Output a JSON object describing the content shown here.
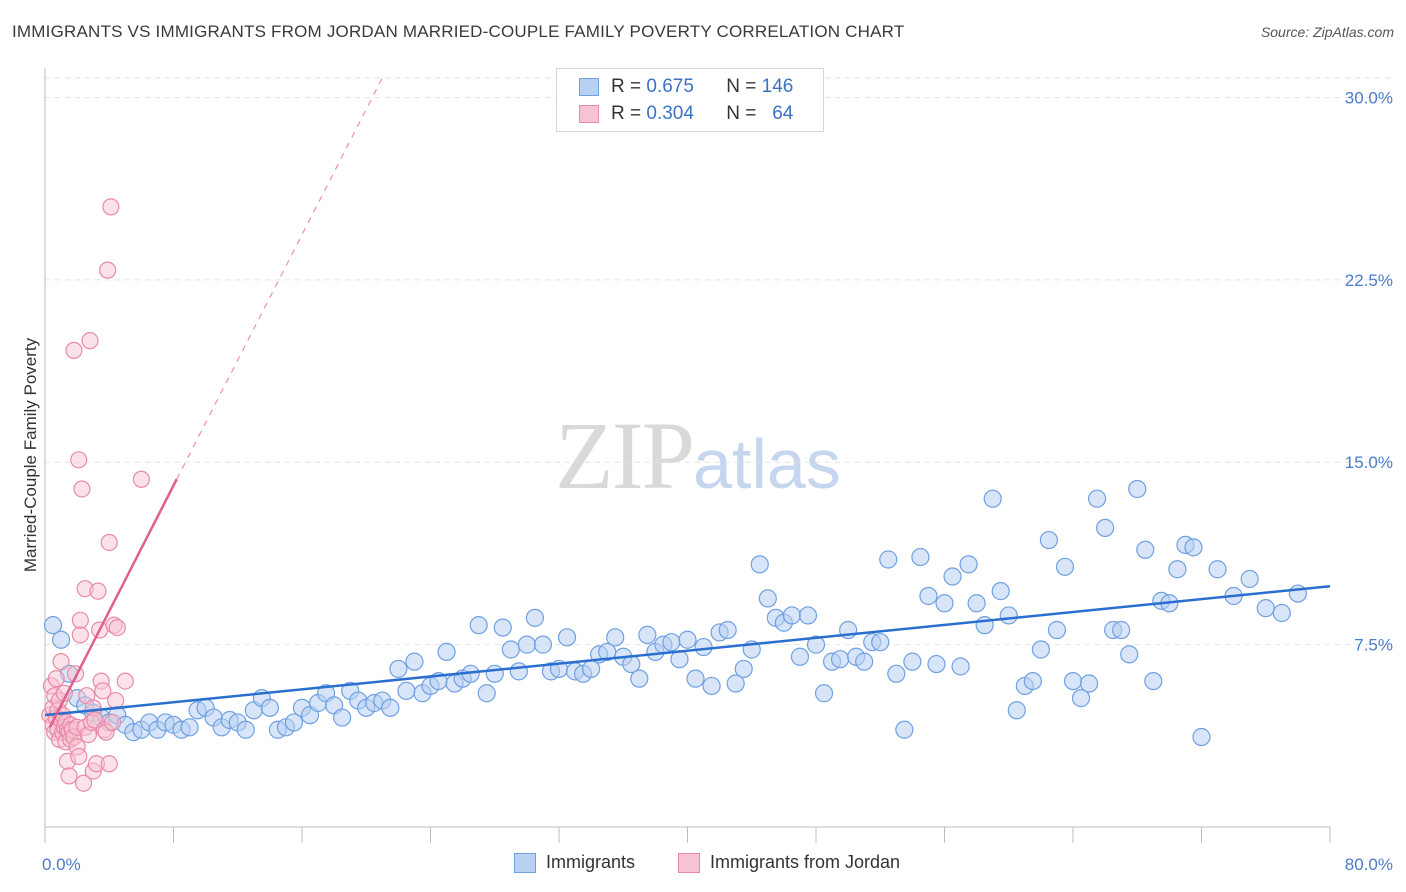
{
  "title": "IMMIGRANTS VS IMMIGRANTS FROM JORDAN MARRIED-COUPLE FAMILY POVERTY CORRELATION CHART",
  "source": "Source: ZipAtlas.com",
  "watermark": {
    "zip": "ZIP",
    "atlas": "atlas"
  },
  "legend": {
    "r_label": "R =",
    "n_label": "N =",
    "rows": [
      {
        "r": "0.675",
        "n": "146"
      },
      {
        "r": "0.304",
        "n": "64"
      }
    ]
  },
  "bottom_legend": {
    "series1": "Immigrants",
    "series2": "Immigrants from Jordan"
  },
  "colors": {
    "blue": "#6fa0e0",
    "blue_fill": "#b8d0f2",
    "blue_line": "#2a6fcf",
    "pink": "#e88aa8",
    "pink_fill": "#f7c3d2",
    "pink_line": "#e0608a",
    "axis_text": "#4a7cc7"
  },
  "chart_data": {
    "type": "scatter",
    "title": "IMMIGRANTS VS IMMIGRANTS FROM JORDAN MARRIED-COUPLE FAMILY POVERTY CORRELATION CHART",
    "xlabel": "",
    "ylabel": "Married-Couple Family Poverty",
    "xlim": [
      0,
      80
    ],
    "ylim": [
      0,
      30.8
    ],
    "x_tick_labels": [
      "0.0%",
      "80.0%"
    ],
    "y_tick_values": [
      7.5,
      15.0,
      22.5,
      30.0
    ],
    "y_tick_labels": [
      "7.5%",
      "15.0%",
      "22.5%",
      "30.0%"
    ],
    "grid": true,
    "legend_position": "top-center",
    "series": [
      {
        "name": "Immigrants",
        "r": 0.675,
        "n": 146,
        "trend": {
          "x0": 0,
          "y0": 4.6,
          "x1": 80,
          "y1": 9.9
        },
        "points": [
          [
            0.5,
            8.3
          ],
          [
            1,
            7.7
          ],
          [
            1.5,
            6.3
          ],
          [
            2,
            5.3
          ],
          [
            2.5,
            5.0
          ],
          [
            3,
            4.7
          ],
          [
            3.5,
            4.5
          ],
          [
            4,
            4.3
          ],
          [
            4.5,
            4.6
          ],
          [
            5,
            4.2
          ],
          [
            5.5,
            3.9
          ],
          [
            6,
            4.0
          ],
          [
            6.5,
            4.3
          ],
          [
            7,
            4.0
          ],
          [
            7.5,
            4.3
          ],
          [
            8,
            4.2
          ],
          [
            8.5,
            4.0
          ],
          [
            9,
            4.1
          ],
          [
            9.5,
            4.8
          ],
          [
            10,
            4.9
          ],
          [
            10.5,
            4.5
          ],
          [
            11,
            4.1
          ],
          [
            11.5,
            4.4
          ],
          [
            12,
            4.3
          ],
          [
            12.5,
            4.0
          ],
          [
            13,
            4.8
          ],
          [
            13.5,
            5.3
          ],
          [
            14,
            4.9
          ],
          [
            14.5,
            4.0
          ],
          [
            15,
            4.1
          ],
          [
            15.5,
            4.3
          ],
          [
            16,
            4.9
          ],
          [
            16.5,
            4.6
          ],
          [
            17,
            5.1
          ],
          [
            17.5,
            5.5
          ],
          [
            18,
            5.0
          ],
          [
            18.5,
            4.5
          ],
          [
            19,
            5.6
          ],
          [
            19.5,
            5.2
          ],
          [
            20,
            4.9
          ],
          [
            20.5,
            5.1
          ],
          [
            21,
            5.2
          ],
          [
            21.5,
            4.9
          ],
          [
            22,
            6.5
          ],
          [
            22.5,
            5.6
          ],
          [
            23,
            6.8
          ],
          [
            23.5,
            5.5
          ],
          [
            24,
            5.8
          ],
          [
            24.5,
            6.0
          ],
          [
            25,
            7.2
          ],
          [
            25.5,
            5.9
          ],
          [
            26,
            6.1
          ],
          [
            26.5,
            6.3
          ],
          [
            27,
            8.3
          ],
          [
            27.5,
            5.5
          ],
          [
            28,
            6.3
          ],
          [
            28.5,
            8.2
          ],
          [
            29,
            7.3
          ],
          [
            29.5,
            6.4
          ],
          [
            30,
            7.5
          ],
          [
            30.5,
            8.6
          ],
          [
            31,
            7.5
          ],
          [
            31.5,
            6.4
          ],
          [
            32,
            6.5
          ],
          [
            32.5,
            7.8
          ],
          [
            33,
            6.4
          ],
          [
            33.5,
            6.3
          ],
          [
            34,
            6.5
          ],
          [
            34.5,
            7.1
          ],
          [
            35,
            7.2
          ],
          [
            35.5,
            7.8
          ],
          [
            36,
            7.0
          ],
          [
            36.5,
            6.7
          ],
          [
            37,
            6.1
          ],
          [
            37.5,
            7.9
          ],
          [
            38,
            7.2
          ],
          [
            38.5,
            7.5
          ],
          [
            39,
            7.6
          ],
          [
            39.5,
            6.9
          ],
          [
            40,
            7.7
          ],
          [
            40.5,
            6.1
          ],
          [
            41,
            7.4
          ],
          [
            41.5,
            5.8
          ],
          [
            42,
            8.0
          ],
          [
            42.5,
            8.1
          ],
          [
            43,
            5.9
          ],
          [
            43.5,
            6.5
          ],
          [
            44,
            7.3
          ],
          [
            44.5,
            10.8
          ],
          [
            45,
            9.4
          ],
          [
            45.5,
            8.6
          ],
          [
            46,
            8.4
          ],
          [
            46.5,
            8.7
          ],
          [
            47,
            7.0
          ],
          [
            47.5,
            8.7
          ],
          [
            48,
            7.5
          ],
          [
            48.5,
            5.5
          ],
          [
            49,
            6.8
          ],
          [
            49.5,
            6.9
          ],
          [
            50,
            8.1
          ],
          [
            50.5,
            7.0
          ],
          [
            51,
            6.8
          ],
          [
            51.5,
            7.6
          ],
          [
            52,
            7.6
          ],
          [
            52.5,
            11.0
          ],
          [
            53,
            6.3
          ],
          [
            53.5,
            4.0
          ],
          [
            54,
            6.8
          ],
          [
            54.5,
            11.1
          ],
          [
            55,
            9.5
          ],
          [
            55.5,
            6.7
          ],
          [
            56,
            9.2
          ],
          [
            56.5,
            10.3
          ],
          [
            57,
            6.6
          ],
          [
            57.5,
            10.8
          ],
          [
            58,
            9.2
          ],
          [
            58.5,
            8.3
          ],
          [
            59,
            13.5
          ],
          [
            59.5,
            9.7
          ],
          [
            60,
            8.7
          ],
          [
            60.5,
            4.8
          ],
          [
            61,
            5.8
          ],
          [
            61.5,
            6.0
          ],
          [
            62,
            7.3
          ],
          [
            62.5,
            11.8
          ],
          [
            63,
            8.1
          ],
          [
            63.5,
            10.7
          ],
          [
            64,
            6.0
          ],
          [
            64.5,
            5.3
          ],
          [
            65,
            5.9
          ],
          [
            65.5,
            13.5
          ],
          [
            66,
            12.3
          ],
          [
            66.5,
            8.1
          ],
          [
            67,
            8.1
          ],
          [
            67.5,
            7.1
          ],
          [
            68,
            13.9
          ],
          [
            68.5,
            11.4
          ],
          [
            69,
            6.0
          ],
          [
            69.5,
            9.3
          ],
          [
            70,
            9.2
          ],
          [
            70.5,
            10.6
          ],
          [
            71,
            11.6
          ],
          [
            71.5,
            11.5
          ],
          [
            72,
            3.7
          ],
          [
            73,
            10.6
          ],
          [
            74,
            9.5
          ],
          [
            75,
            10.2
          ],
          [
            76,
            9.0
          ],
          [
            77,
            8.8
          ],
          [
            78,
            9.6
          ]
        ]
      },
      {
        "name": "Immigrants from Jordan",
        "r": 0.304,
        "n": 64,
        "trend": {
          "x0": 0.3,
          "y0": 4.1,
          "x1": 8.2,
          "y1": 14.3
        },
        "trend_dashed": {
          "x0": 8.2,
          "y0": 14.3,
          "x1": 21,
          "y1": 30.8
        },
        "points": [
          [
            0.3,
            4.6
          ],
          [
            0.4,
            5.8
          ],
          [
            0.5,
            4.2
          ],
          [
            0.5,
            4.9
          ],
          [
            0.6,
            3.9
          ],
          [
            0.6,
            5.4
          ],
          [
            0.7,
            4.5
          ],
          [
            0.7,
            6.1
          ],
          [
            0.8,
            4.0
          ],
          [
            0.8,
            4.8
          ],
          [
            0.9,
            3.6
          ],
          [
            0.9,
            5.2
          ],
          [
            1.0,
            4.4
          ],
          [
            1.0,
            6.8
          ],
          [
            1.1,
            3.9
          ],
          [
            1.1,
            4.6
          ],
          [
            1.2,
            4.1
          ],
          [
            1.2,
            5.5
          ],
          [
            1.3,
            3.5
          ],
          [
            1.3,
            4.3
          ],
          [
            1.4,
            2.7
          ],
          [
            1.4,
            4.0
          ],
          [
            1.5,
            2.1
          ],
          [
            1.5,
            3.9
          ],
          [
            1.6,
            3.6
          ],
          [
            1.6,
            4.2
          ],
          [
            1.7,
            4.0
          ],
          [
            1.8,
            3.7
          ],
          [
            1.8,
            19.6
          ],
          [
            1.9,
            6.3
          ],
          [
            2.0,
            3.3
          ],
          [
            2.0,
            4.1
          ],
          [
            2.1,
            2.9
          ],
          [
            2.1,
            15.1
          ],
          [
            2.2,
            7.9
          ],
          [
            2.2,
            8.5
          ],
          [
            2.3,
            13.9
          ],
          [
            2.4,
            1.8
          ],
          [
            2.5,
            4.1
          ],
          [
            2.5,
            9.8
          ],
          [
            2.6,
            5.4
          ],
          [
            2.7,
            3.8
          ],
          [
            2.8,
            20.0
          ],
          [
            2.9,
            4.3
          ],
          [
            3.0,
            4.9
          ],
          [
            3.0,
            2.3
          ],
          [
            3.1,
            4.4
          ],
          [
            3.2,
            2.6
          ],
          [
            3.3,
            9.7
          ],
          [
            3.4,
            8.1
          ],
          [
            3.5,
            6.0
          ],
          [
            3.6,
            5.6
          ],
          [
            3.7,
            4.0
          ],
          [
            3.8,
            3.9
          ],
          [
            3.9,
            22.9
          ],
          [
            4.0,
            11.7
          ],
          [
            4.0,
            2.6
          ],
          [
            4.1,
            25.5
          ],
          [
            4.2,
            4.3
          ],
          [
            4.3,
            8.3
          ],
          [
            4.4,
            5.2
          ],
          [
            4.5,
            8.2
          ],
          [
            5.0,
            6.0
          ],
          [
            6.0,
            14.3
          ]
        ]
      }
    ]
  }
}
